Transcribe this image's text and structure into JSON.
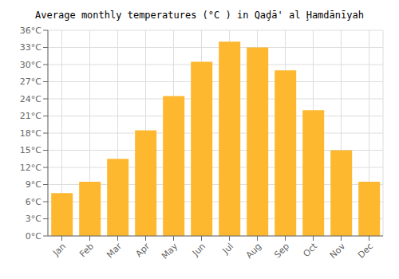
{
  "chart_data": {
    "type": "bar",
    "title": "Average monthly temperatures (°C ) in Qaḑā' al Ḩamdānīyah",
    "categories": [
      "Jan",
      "Feb",
      "Mar",
      "Apr",
      "May",
      "Jun",
      "Jul",
      "Aug",
      "Sep",
      "Oct",
      "Nov",
      "Dec"
    ],
    "values": [
      7.5,
      9.5,
      13.5,
      18.5,
      24.5,
      30.5,
      34.0,
      33.0,
      29.0,
      22.0,
      15.0,
      9.5
    ],
    "color": "#FDB830",
    "ylim": [
      0,
      36
    ],
    "yticks": [
      {
        "value": 0,
        "label": "0°C"
      },
      {
        "value": 3,
        "label": "3°C"
      },
      {
        "value": 6,
        "label": "6°C"
      },
      {
        "value": 9,
        "label": "9°C"
      },
      {
        "value": 12,
        "label": "12°C"
      },
      {
        "value": 15,
        "label": "15°C"
      },
      {
        "value": 18,
        "label": "18°C"
      },
      {
        "value": 21,
        "label": "21°C"
      },
      {
        "value": 24,
        "label": "24°C"
      },
      {
        "value": 27,
        "label": "27°C"
      },
      {
        "value": 30,
        "label": "30°C"
      },
      {
        "value": 33,
        "label": "33°C"
      },
      {
        "value": 36,
        "label": "36°C"
      }
    ],
    "grid": true
  }
}
